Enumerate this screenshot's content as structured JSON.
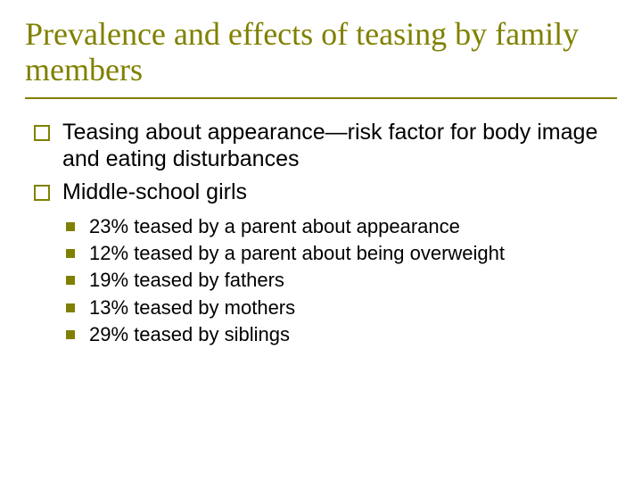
{
  "title": "Prevalence and effects of teasing by family members",
  "colors": {
    "accent": "#808000",
    "text": "#000000",
    "background": "#ffffff"
  },
  "typography": {
    "title_font": "Garamond, serif",
    "title_fontsize": 36,
    "body_font": "Verdana, sans-serif",
    "level1_fontsize": 25,
    "level2_fontsize": 22
  },
  "bullets": {
    "level1_marker": "hollow-square",
    "level2_marker": "filled-square"
  },
  "level1": [
    "Teasing about appearance—risk factor for body image and eating disturbances",
    "Middle-school girls"
  ],
  "level2": [
    "23% teased by a parent about appearance",
    "12% teased by a parent about being overweight",
    "19% teased by fathers",
    "13% teased by mothers",
    "29% teased by siblings"
  ]
}
